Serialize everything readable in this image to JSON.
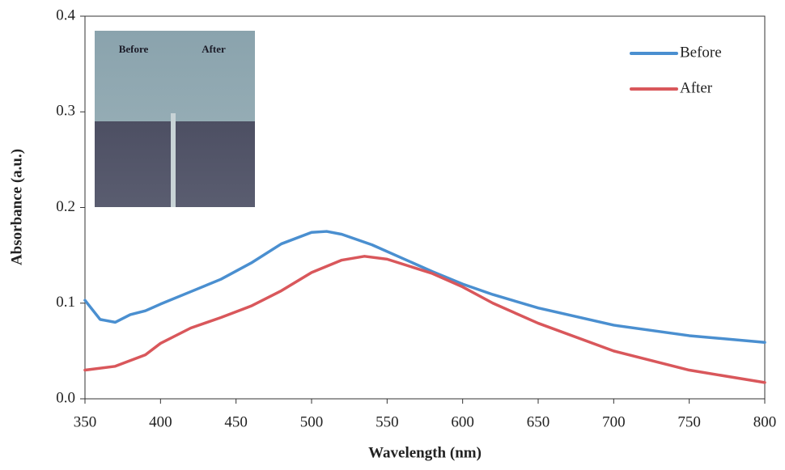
{
  "chart_data": {
    "type": "line",
    "x_label": "Wavelength (nm)",
    "y_label": "Absorbance (a.u.)",
    "xlim": [
      350,
      800
    ],
    "ylim": [
      0,
      0.4
    ],
    "xticks": [
      350,
      400,
      450,
      500,
      550,
      600,
      650,
      700,
      750,
      800
    ],
    "yticks": [
      {
        "value": 0,
        "label": "0.0"
      },
      0.1,
      0.2,
      0.3,
      0.4
    ],
    "grid": false,
    "legend": "upper right",
    "annotations": [
      "Before",
      "After"
    ],
    "series": [
      {
        "name": "Before",
        "color": "#4a8fd0",
        "x": [
          350,
          360,
          370,
          380,
          390,
          400,
          420,
          440,
          460,
          480,
          500,
          510,
          520,
          540,
          560,
          580,
          600,
          620,
          650,
          700,
          750,
          800
        ],
        "values": [
          0.103,
          0.083,
          0.08,
          0.088,
          0.092,
          0.099,
          0.112,
          0.125,
          0.142,
          0.162,
          0.174,
          0.175,
          0.172,
          0.161,
          0.147,
          0.133,
          0.12,
          0.109,
          0.095,
          0.077,
          0.066,
          0.059
        ]
      },
      {
        "name": "After",
        "color": "#d9575b",
        "x": [
          350,
          370,
          390,
          400,
          420,
          440,
          460,
          480,
          500,
          520,
          535,
          550,
          580,
          600,
          620,
          650,
          700,
          750,
          800
        ],
        "values": [
          0.03,
          0.034,
          0.046,
          0.058,
          0.074,
          0.085,
          0.097,
          0.113,
          0.132,
          0.145,
          0.149,
          0.146,
          0.131,
          0.117,
          0.1,
          0.079,
          0.05,
          0.03,
          0.017
        ]
      }
    ]
  }
}
